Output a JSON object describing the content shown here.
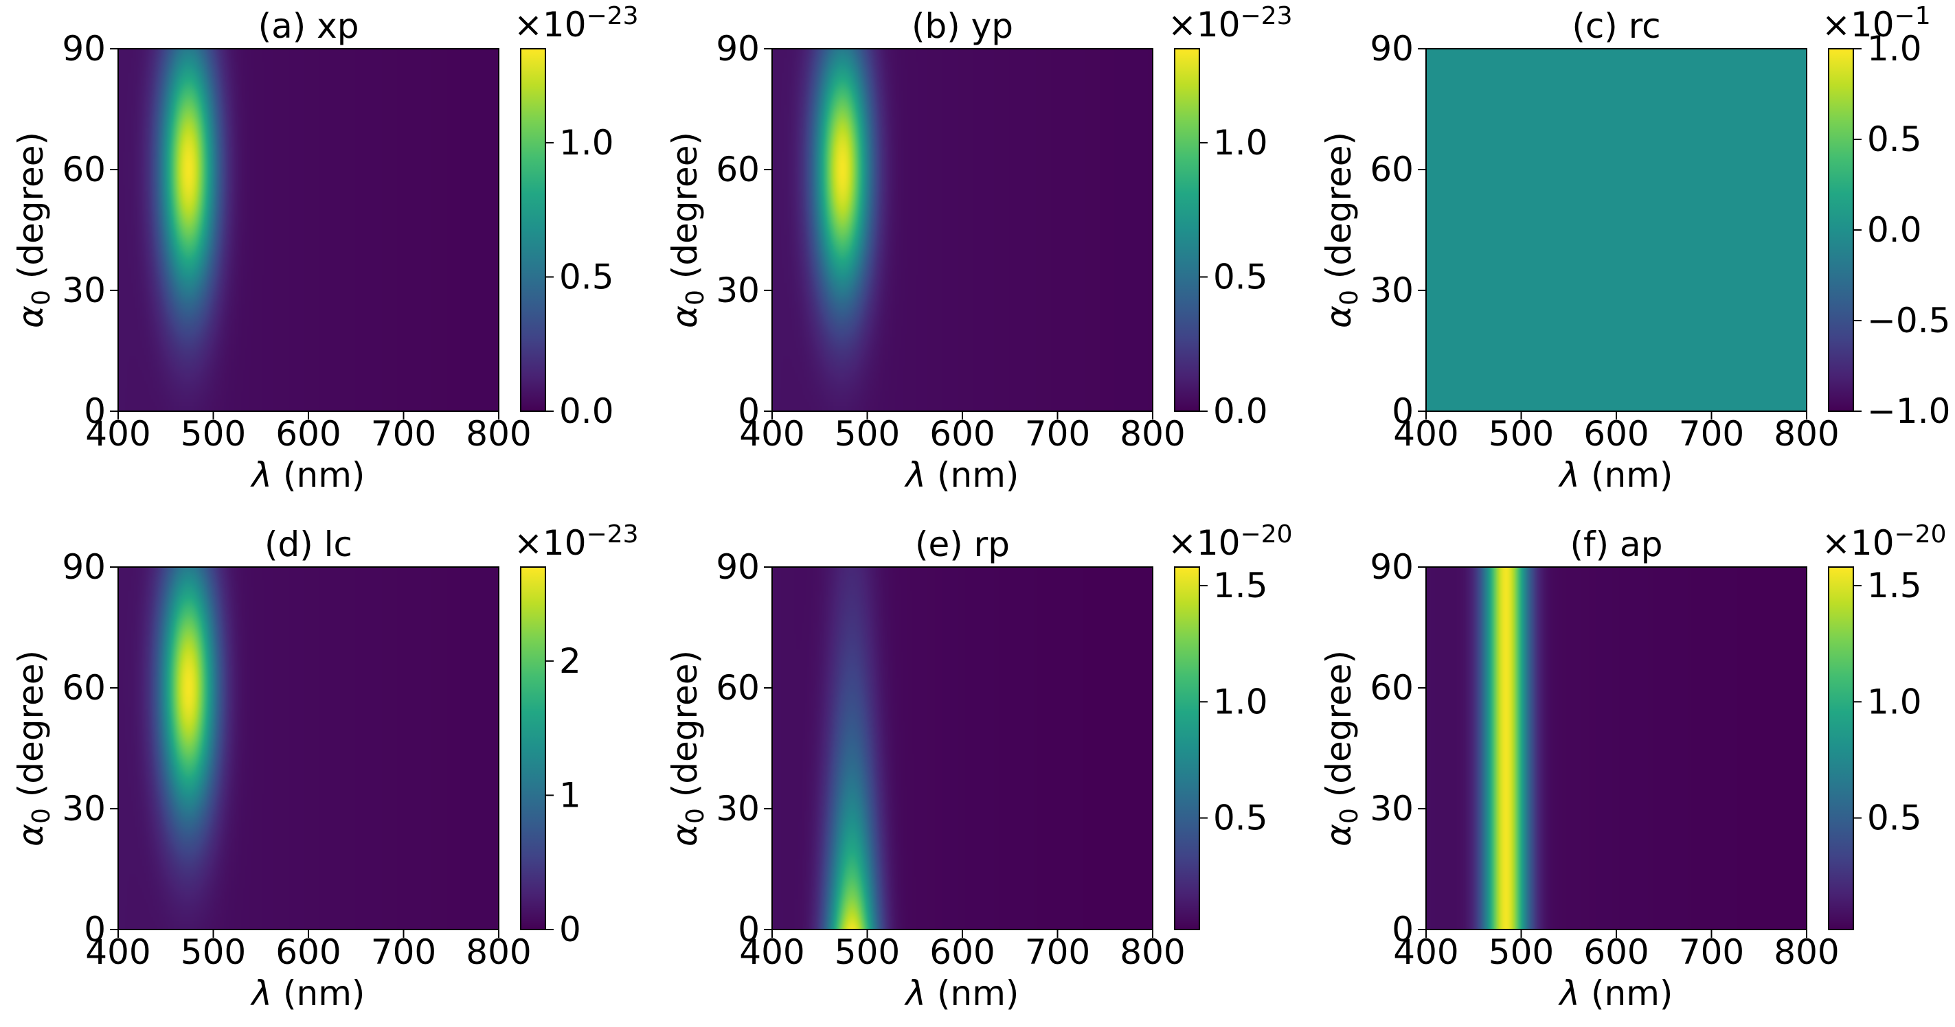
{
  "chart_data": [
    {
      "type": "heatmap",
      "title": "(a) xp",
      "xlabel_symbol": "λ",
      "xlabel_unit": "(nm)",
      "ylabel_symbol": "α",
      "ylabel_sub": "0",
      "ylabel_unit": "(degree)",
      "x_range": [
        400,
        800
      ],
      "y_range": [
        0,
        90
      ],
      "x_ticks": [
        "400",
        "500",
        "600",
        "700",
        "800"
      ],
      "y_ticks": [
        "0",
        "30",
        "60",
        "90"
      ],
      "colorbar": {
        "multiplier": "×10",
        "exponent": "−23",
        "range": [
          0,
          1.35
        ],
        "ticks": [
          {
            "v": 0,
            "label": "0.0"
          },
          {
            "v": 0.5,
            "label": "0.5"
          },
          {
            "v": 1.0,
            "label": "1.0"
          }
        ]
      },
      "field": {
        "model": "peak",
        "lambda0": 474,
        "sigma_lambda": 20,
        "alpha0": 60,
        "sigma_alpha": 22,
        "baseline": 0.05,
        "peak_value": 1.35
      }
    },
    {
      "type": "heatmap",
      "title": "(b) yp",
      "xlabel_symbol": "λ",
      "xlabel_unit": "(nm)",
      "ylabel_symbol": "α",
      "ylabel_sub": "0",
      "ylabel_unit": "(degree)",
      "x_range": [
        400,
        800
      ],
      "y_range": [
        0,
        90
      ],
      "x_ticks": [
        "400",
        "500",
        "600",
        "700",
        "800"
      ],
      "y_ticks": [
        "0",
        "30",
        "60",
        "90"
      ],
      "colorbar": {
        "multiplier": "×10",
        "exponent": "−23",
        "range": [
          0,
          1.35
        ],
        "ticks": [
          {
            "v": 0,
            "label": "0.0"
          },
          {
            "v": 0.5,
            "label": "0.5"
          },
          {
            "v": 1.0,
            "label": "1.0"
          }
        ]
      },
      "field": {
        "model": "peak",
        "lambda0": 474,
        "sigma_lambda": 20,
        "alpha0": 60,
        "sigma_alpha": 22,
        "baseline": 0.05,
        "peak_value": 1.35
      }
    },
    {
      "type": "heatmap",
      "title": "(c) rc",
      "xlabel_symbol": "λ",
      "xlabel_unit": "(nm)",
      "ylabel_symbol": "α",
      "ylabel_sub": "0",
      "ylabel_unit": "(degree)",
      "x_range": [
        400,
        800
      ],
      "y_range": [
        0,
        90
      ],
      "x_ticks": [
        "400",
        "500",
        "600",
        "700",
        "800"
      ],
      "y_ticks": [
        "0",
        "30",
        "60",
        "90"
      ],
      "colorbar": {
        "multiplier": "×10",
        "exponent": "−1",
        "range": [
          -1.0,
          1.0
        ],
        "ticks": [
          {
            "v": -1.0,
            "label": "−1.0"
          },
          {
            "v": -0.5,
            "label": "−0.5"
          },
          {
            "v": 0.0,
            "label": "0.0"
          },
          {
            "v": 0.5,
            "label": "0.5"
          },
          {
            "v": 1.0,
            "label": "1.0"
          }
        ]
      },
      "field": {
        "model": "constant",
        "value": 0
      }
    },
    {
      "type": "heatmap",
      "title": "(d) lc",
      "xlabel_symbol": "λ",
      "xlabel_unit": "(nm)",
      "ylabel_symbol": "α",
      "ylabel_sub": "0",
      "ylabel_unit": "(degree)",
      "x_range": [
        400,
        800
      ],
      "y_range": [
        0,
        90
      ],
      "x_ticks": [
        "400",
        "500",
        "600",
        "700",
        "800"
      ],
      "y_ticks": [
        "0",
        "30",
        "60",
        "90"
      ],
      "colorbar": {
        "multiplier": "×10",
        "exponent": "−23",
        "range": [
          0,
          2.7
        ],
        "ticks": [
          {
            "v": 0,
            "label": "0"
          },
          {
            "v": 1,
            "label": "1"
          },
          {
            "v": 2,
            "label": "2"
          }
        ]
      },
      "field": {
        "model": "peak",
        "lambda0": 474,
        "sigma_lambda": 20,
        "alpha0": 60,
        "sigma_alpha": 22,
        "baseline": 0.05,
        "peak_value": 2.7
      }
    },
    {
      "type": "heatmap",
      "title": "(e) rp",
      "xlabel_symbol": "λ",
      "xlabel_unit": "(nm)",
      "ylabel_symbol": "α",
      "ylabel_sub": "0",
      "ylabel_unit": "(degree)",
      "x_range": [
        400,
        800
      ],
      "y_range": [
        0,
        90
      ],
      "x_ticks": [
        "400",
        "500",
        "600",
        "700",
        "800"
      ],
      "y_ticks": [
        "0",
        "30",
        "60",
        "90"
      ],
      "colorbar": {
        "multiplier": "×10",
        "exponent": "−20",
        "range": [
          0.02,
          1.58
        ],
        "ticks": [
          {
            "v": 0.5,
            "label": "0.5"
          },
          {
            "v": 1.0,
            "label": "1.0"
          },
          {
            "v": 1.5,
            "label": "1.5"
          }
        ]
      },
      "field": {
        "model": "decay",
        "lambda0": 484,
        "sigma_lambda": 18,
        "decay_alpha": 38,
        "baseline": 0.05,
        "peak_value": 1.58
      }
    },
    {
      "type": "heatmap",
      "title": "(f) ap",
      "xlabel_symbol": "λ",
      "xlabel_unit": "(nm)",
      "ylabel_symbol": "α",
      "ylabel_sub": "0",
      "ylabel_unit": "(degree)",
      "x_range": [
        400,
        800
      ],
      "y_range": [
        0,
        90
      ],
      "x_ticks": [
        "400",
        "500",
        "600",
        "700",
        "800"
      ],
      "y_ticks": [
        "0",
        "30",
        "60",
        "90"
      ],
      "colorbar": {
        "multiplier": "×10",
        "exponent": "−20",
        "range": [
          0.02,
          1.58
        ],
        "ticks": [
          {
            "v": 0.5,
            "label": "0.5"
          },
          {
            "v": 1.0,
            "label": "1.0"
          },
          {
            "v": 1.5,
            "label": "1.5"
          }
        ]
      },
      "field": {
        "model": "band",
        "lambda0": 484,
        "sigma_lambda": 16,
        "baseline": 0.05,
        "peak_value": 1.58
      }
    }
  ]
}
